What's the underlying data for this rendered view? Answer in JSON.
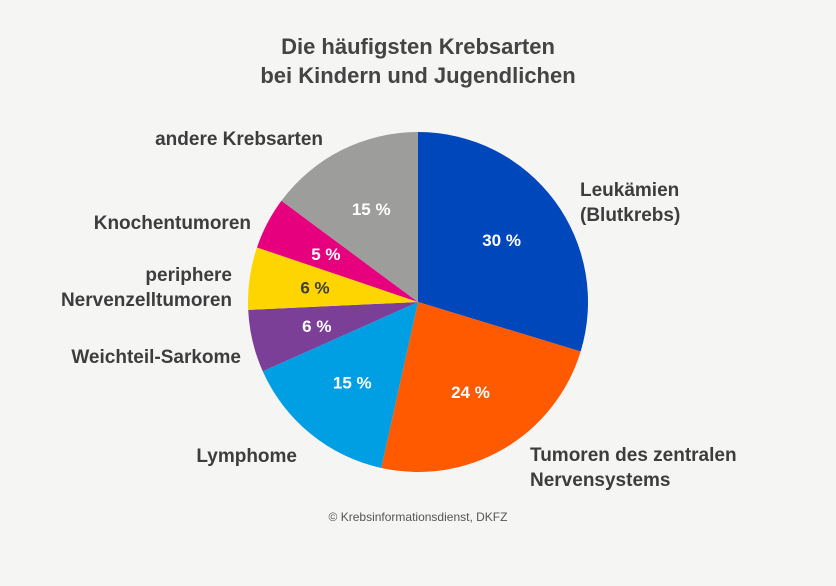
{
  "chart_data": {
    "type": "pie",
    "title_line1": "Die häufigsten Krebsarten",
    "title_line2": "bei Kindern und Jugendlichen",
    "credit": "© Krebsinformationsdienst, DKFZ",
    "slices": [
      {
        "label": [
          "Leukämien",
          "(Blutkrebs)"
        ],
        "value": 30,
        "value_label": "30 %",
        "color": "#0047bb",
        "text_color": "#ffffff"
      },
      {
        "label": [
          "Tumoren des zentralen",
          "Nervensystems"
        ],
        "value": 24,
        "value_label": "24 %",
        "color": "#ff5a00",
        "text_color": "#ffffff"
      },
      {
        "label": [
          "Lymphome"
        ],
        "value": 15,
        "value_label": "15 %",
        "color": "#009fe3",
        "text_color": "#ffffff"
      },
      {
        "label": [
          "Weichteil-Sarkome"
        ],
        "value": 6,
        "value_label": "6 %",
        "color": "#7b3f98",
        "text_color": "#ffffff"
      },
      {
        "label": [
          "periphere",
          "Nervenzelltumoren"
        ],
        "value": 6,
        "value_label": "6 %",
        "color": "#ffd500",
        "text_color": "#3d3d3d"
      },
      {
        "label": [
          "Knochentumoren"
        ],
        "value": 5,
        "value_label": "5 %",
        "color": "#e6007e",
        "text_color": "#ffffff"
      },
      {
        "label": [
          "andere Krebsarten"
        ],
        "value": 15,
        "value_label": "15 %",
        "color": "#9d9d9c",
        "text_color": "#ffffff"
      }
    ]
  }
}
